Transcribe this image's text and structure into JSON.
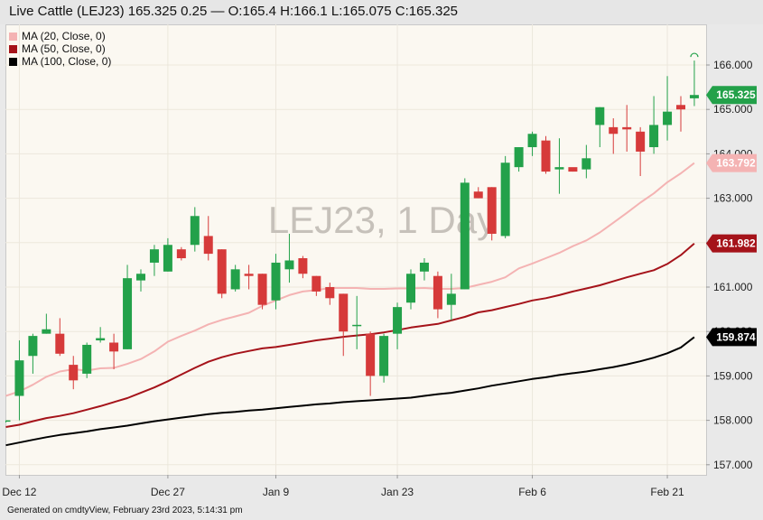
{
  "header": {
    "title": "Live Cattle (LEJ23) 165.325 0.25 — O:165.4 H:166.1 L:165.075 C:165.325"
  },
  "legend": [
    {
      "label": "MA (20, Close, 0)",
      "color": "#f4b3b3"
    },
    {
      "label": "MA (50, Close, 0)",
      "color": "#a5131a"
    },
    {
      "label": "MA (100, Close, 0)",
      "color": "#000000"
    }
  ],
  "watermark": "LEJ23, 1 Day",
  "footer": "Generated on cmdtyView, February 23rd 2023, 5:14:31 pm",
  "colors": {
    "up": "#23a14a",
    "down": "#d63a3a",
    "ma20": "#f4b3b3",
    "ma50": "#a5131a",
    "ma100": "#000000",
    "last_price": "#23a14a"
  },
  "chart_data": {
    "type": "candlestick",
    "title": "Live Cattle (LEJ23)",
    "ylim": [
      156.75,
      166.9
    ],
    "y_ticks": [
      "157.000",
      "158.000",
      "159.000",
      "160.000",
      "161.000",
      "162.000",
      "163.000",
      "164.000",
      "165.000",
      "166.000"
    ],
    "x_ticks": [
      {
        "label": "Dec 12",
        "index": 1
      },
      {
        "label": "Dec 27",
        "index": 12
      },
      {
        "label": "Jan 9",
        "index": 20
      },
      {
        "label": "Jan 23",
        "index": 29
      },
      {
        "label": "Feb 6",
        "index": 39
      },
      {
        "label": "Feb 21",
        "index": 49
      }
    ],
    "candles": [
      {
        "o": 158.0,
        "h": 158.0,
        "l": 157.95,
        "c": 158.0
      },
      {
        "o": 158.55,
        "h": 159.8,
        "l": 158.0,
        "c": 159.35
      },
      {
        "o": 159.45,
        "h": 159.95,
        "l": 159.05,
        "c": 159.9
      },
      {
        "o": 159.95,
        "h": 160.4,
        "l": 159.95,
        "c": 160.05
      },
      {
        "o": 159.95,
        "h": 160.3,
        "l": 159.45,
        "c": 159.5
      },
      {
        "o": 159.25,
        "h": 159.45,
        "l": 158.7,
        "c": 158.9
      },
      {
        "o": 159.05,
        "h": 159.75,
        "l": 158.95,
        "c": 159.7
      },
      {
        "o": 159.8,
        "h": 160.1,
        "l": 159.75,
        "c": 159.85
      },
      {
        "o": 159.75,
        "h": 159.95,
        "l": 159.15,
        "c": 159.55
      },
      {
        "o": 159.6,
        "h": 161.5,
        "l": 159.6,
        "c": 161.2
      },
      {
        "o": 161.15,
        "h": 161.4,
        "l": 160.9,
        "c": 161.3
      },
      {
        "o": 161.55,
        "h": 161.95,
        "l": 161.25,
        "c": 161.85
      },
      {
        "o": 161.35,
        "h": 162.1,
        "l": 161.35,
        "c": 161.95
      },
      {
        "o": 161.85,
        "h": 161.9,
        "l": 161.6,
        "c": 161.65
      },
      {
        "o": 161.95,
        "h": 162.8,
        "l": 161.8,
        "c": 162.6
      },
      {
        "o": 162.15,
        "h": 162.6,
        "l": 161.6,
        "c": 161.75
      },
      {
        "o": 161.85,
        "h": 161.85,
        "l": 160.75,
        "c": 160.85
      },
      {
        "o": 160.95,
        "h": 161.5,
        "l": 160.9,
        "c": 161.4
      },
      {
        "o": 161.3,
        "h": 161.5,
        "l": 160.95,
        "c": 161.25
      },
      {
        "o": 161.3,
        "h": 161.3,
        "l": 160.5,
        "c": 160.6
      },
      {
        "o": 160.7,
        "h": 161.75,
        "l": 160.5,
        "c": 161.55
      },
      {
        "o": 161.4,
        "h": 162.2,
        "l": 161.1,
        "c": 161.6
      },
      {
        "o": 161.65,
        "h": 161.7,
        "l": 161.2,
        "c": 161.3
      },
      {
        "o": 161.25,
        "h": 161.25,
        "l": 160.8,
        "c": 160.9
      },
      {
        "o": 161.0,
        "h": 161.1,
        "l": 160.6,
        "c": 160.75
      },
      {
        "o": 160.85,
        "h": 160.85,
        "l": 159.45,
        "c": 160.0
      },
      {
        "o": 160.15,
        "h": 160.8,
        "l": 159.6,
        "c": 160.15
      },
      {
        "o": 159.95,
        "h": 160.0,
        "l": 158.55,
        "c": 159.0
      },
      {
        "o": 159.0,
        "h": 159.95,
        "l": 158.85,
        "c": 159.9
      },
      {
        "o": 159.95,
        "h": 160.65,
        "l": 159.6,
        "c": 160.55
      },
      {
        "o": 160.65,
        "h": 161.4,
        "l": 160.5,
        "c": 161.3
      },
      {
        "o": 161.35,
        "h": 161.65,
        "l": 161.15,
        "c": 161.55
      },
      {
        "o": 161.25,
        "h": 161.35,
        "l": 160.3,
        "c": 160.5
      },
      {
        "o": 160.6,
        "h": 161.3,
        "l": 160.25,
        "c": 160.85
      },
      {
        "o": 160.95,
        "h": 163.45,
        "l": 160.95,
        "c": 163.35
      },
      {
        "o": 163.15,
        "h": 163.25,
        "l": 163.0,
        "c": 163.0
      },
      {
        "o": 163.25,
        "h": 163.25,
        "l": 162.05,
        "c": 162.2
      },
      {
        "o": 162.15,
        "h": 163.95,
        "l": 162.1,
        "c": 163.8
      },
      {
        "o": 163.7,
        "h": 164.15,
        "l": 163.6,
        "c": 164.15
      },
      {
        "o": 164.15,
        "h": 164.5,
        "l": 163.95,
        "c": 164.45
      },
      {
        "o": 164.3,
        "h": 164.4,
        "l": 163.55,
        "c": 163.6
      },
      {
        "o": 163.65,
        "h": 164.35,
        "l": 163.1,
        "c": 163.7
      },
      {
        "o": 163.7,
        "h": 163.65,
        "l": 163.6,
        "c": 163.6
      },
      {
        "o": 163.65,
        "h": 164.2,
        "l": 163.45,
        "c": 163.9
      },
      {
        "o": 164.65,
        "h": 165.05,
        "l": 164.15,
        "c": 165.05
      },
      {
        "o": 164.6,
        "h": 164.8,
        "l": 164.0,
        "c": 164.45
      },
      {
        "o": 164.6,
        "h": 165.1,
        "l": 164.05,
        "c": 164.55
      },
      {
        "o": 164.5,
        "h": 164.6,
        "l": 163.5,
        "c": 164.05
      },
      {
        "o": 164.15,
        "h": 165.3,
        "l": 164.0,
        "c": 164.65
      },
      {
        "o": 164.65,
        "h": 165.75,
        "l": 164.3,
        "c": 164.95
      },
      {
        "o": 165.1,
        "h": 165.3,
        "l": 164.5,
        "c": 165.0
      },
      {
        "o": 165.25,
        "h": 166.1,
        "l": 165.075,
        "c": 165.325
      }
    ],
    "moving_averages": [
      {
        "name": "MA (20, Close, 0)",
        "start_index": 0,
        "values": [
          158.55,
          158.65,
          158.8,
          158.98,
          159.1,
          159.15,
          159.12,
          159.17,
          159.18,
          159.27,
          159.38,
          159.55,
          159.77,
          159.9,
          160.02,
          160.16,
          160.26,
          160.34,
          160.42,
          160.58,
          160.7,
          160.82,
          160.9,
          160.93,
          160.98,
          160.98,
          160.98,
          160.96,
          160.96,
          160.97,
          160.97,
          160.98,
          160.96,
          160.96,
          160.98,
          161.05,
          161.12,
          161.22,
          161.42,
          161.53,
          161.65,
          161.77,
          161.92,
          162.05,
          162.23,
          162.45,
          162.67,
          162.9,
          163.11,
          163.36,
          163.56,
          163.792
        ]
      },
      {
        "name": "MA (50, Close, 0)",
        "start_index": 0,
        "values": [
          157.85,
          157.9,
          157.98,
          158.05,
          158.1,
          158.16,
          158.24,
          158.32,
          158.41,
          158.5,
          158.62,
          158.74,
          158.88,
          159.03,
          159.18,
          159.32,
          159.42,
          159.5,
          159.56,
          159.62,
          159.65,
          159.7,
          159.75,
          159.8,
          159.84,
          159.88,
          159.91,
          159.94,
          159.98,
          160.03,
          160.09,
          160.13,
          160.17,
          160.25,
          160.33,
          160.43,
          160.48,
          160.55,
          160.62,
          160.7,
          160.75,
          160.82,
          160.9,
          160.97,
          161.04,
          161.13,
          161.22,
          161.3,
          161.38,
          161.52,
          161.72,
          161.982
        ]
      },
      {
        "name": "MA (100, Close, 0)",
        "start_index": 0,
        "values": [
          157.44,
          157.5,
          157.56,
          157.62,
          157.67,
          157.71,
          157.75,
          157.8,
          157.84,
          157.88,
          157.93,
          157.98,
          158.02,
          158.06,
          158.1,
          158.14,
          158.17,
          158.19,
          158.22,
          158.24,
          158.27,
          158.3,
          158.33,
          158.36,
          158.38,
          158.41,
          158.43,
          158.45,
          158.47,
          158.49,
          158.51,
          158.55,
          158.59,
          158.62,
          158.67,
          158.72,
          158.78,
          158.83,
          158.88,
          158.93,
          158.97,
          159.02,
          159.06,
          159.1,
          159.15,
          159.2,
          159.26,
          159.33,
          159.41,
          159.51,
          159.64,
          159.874
        ]
      }
    ],
    "last_values": [
      {
        "label": "165.325",
        "value": 165.325,
        "color": "#23a14a"
      },
      {
        "label": "163.792",
        "value": 163.792,
        "color": "#f4b3b3"
      },
      {
        "label": "161.982",
        "value": 161.982,
        "color": "#a5131a"
      },
      {
        "label": "159.874",
        "value": 159.874,
        "color": "#000000"
      }
    ]
  }
}
